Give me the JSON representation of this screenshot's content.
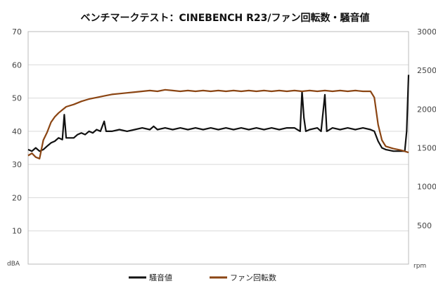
{
  "chart_data": {
    "type": "line",
    "title": "ベンチマークテスト：CINEBENCH R23/ファン回転数・騒音値",
    "y_left": {
      "unit": "dBA",
      "range": [
        0,
        70
      ],
      "ticks": [
        10,
        20,
        30,
        40,
        50,
        60,
        70
      ]
    },
    "y_right": {
      "unit": "rpm",
      "range": [
        0,
        3000
      ],
      "ticks": [
        500,
        1000,
        1500,
        2000,
        2500,
        3000
      ]
    },
    "grid": true,
    "legend_position": "bottom",
    "x_domain": [
      0,
      100
    ],
    "series": [
      {
        "name": "騒音値",
        "axis": "left",
        "color": "#111111",
        "points": [
          [
            0,
            34.5
          ],
          [
            1,
            34
          ],
          [
            2,
            35
          ],
          [
            3,
            34
          ],
          [
            4,
            34.5
          ],
          [
            5,
            35.5
          ],
          [
            6,
            36.5
          ],
          [
            7,
            37
          ],
          [
            8,
            38
          ],
          [
            9,
            37.5
          ],
          [
            9.5,
            45
          ],
          [
            10,
            38
          ],
          [
            12,
            38
          ],
          [
            13,
            39
          ],
          [
            14,
            39.5
          ],
          [
            15,
            39
          ],
          [
            16,
            40
          ],
          [
            17,
            39.5
          ],
          [
            18,
            40.5
          ],
          [
            19,
            40
          ],
          [
            20,
            43
          ],
          [
            20.5,
            40
          ],
          [
            22,
            40
          ],
          [
            24,
            40.5
          ],
          [
            26,
            40
          ],
          [
            28,
            40.5
          ],
          [
            30,
            41
          ],
          [
            32,
            40.5
          ],
          [
            33,
            41.5
          ],
          [
            34,
            40.5
          ],
          [
            36,
            41
          ],
          [
            38,
            40.5
          ],
          [
            40,
            41
          ],
          [
            42,
            40.5
          ],
          [
            44,
            41
          ],
          [
            46,
            40.5
          ],
          [
            48,
            41
          ],
          [
            50,
            40.5
          ],
          [
            52,
            41
          ],
          [
            54,
            40.5
          ],
          [
            56,
            41
          ],
          [
            58,
            40.5
          ],
          [
            60,
            41
          ],
          [
            62,
            40.5
          ],
          [
            64,
            41
          ],
          [
            66,
            40.5
          ],
          [
            68,
            41
          ],
          [
            70,
            41
          ],
          [
            71.5,
            40
          ],
          [
            72,
            52
          ],
          [
            72.5,
            44
          ],
          [
            73,
            40
          ],
          [
            74,
            40.5
          ],
          [
            76,
            41
          ],
          [
            77,
            40
          ],
          [
            78,
            51
          ],
          [
            78.5,
            40
          ],
          [
            80,
            41
          ],
          [
            82,
            40.5
          ],
          [
            84,
            41
          ],
          [
            86,
            40.5
          ],
          [
            88,
            41
          ],
          [
            90,
            40.5
          ],
          [
            91,
            40
          ],
          [
            92,
            37
          ],
          [
            93,
            35
          ],
          [
            94,
            34.5
          ],
          [
            96,
            34
          ],
          [
            98,
            34
          ],
          [
            99,
            34
          ],
          [
            99.5,
            40
          ],
          [
            100,
            57
          ]
        ]
      },
      {
        "name": "ファン回転数",
        "axis": "right",
        "color": "#8B4513",
        "points": [
          [
            0,
            1400
          ],
          [
            1,
            1430
          ],
          [
            2,
            1380
          ],
          [
            3,
            1360
          ],
          [
            4,
            1600
          ],
          [
            5,
            1700
          ],
          [
            6,
            1830
          ],
          [
            7,
            1900
          ],
          [
            8,
            1950
          ],
          [
            9,
            1990
          ],
          [
            10,
            2030
          ],
          [
            12,
            2060
          ],
          [
            14,
            2100
          ],
          [
            16,
            2130
          ],
          [
            18,
            2150
          ],
          [
            20,
            2170
          ],
          [
            22,
            2190
          ],
          [
            24,
            2200
          ],
          [
            26,
            2210
          ],
          [
            28,
            2220
          ],
          [
            30,
            2230
          ],
          [
            32,
            2240
          ],
          [
            34,
            2230
          ],
          [
            36,
            2250
          ],
          [
            38,
            2240
          ],
          [
            40,
            2230
          ],
          [
            42,
            2240
          ],
          [
            44,
            2230
          ],
          [
            46,
            2240
          ],
          [
            48,
            2230
          ],
          [
            50,
            2240
          ],
          [
            52,
            2230
          ],
          [
            54,
            2240
          ],
          [
            56,
            2230
          ],
          [
            58,
            2240
          ],
          [
            60,
            2230
          ],
          [
            62,
            2240
          ],
          [
            64,
            2230
          ],
          [
            66,
            2240
          ],
          [
            68,
            2230
          ],
          [
            70,
            2240
          ],
          [
            72,
            2230
          ],
          [
            74,
            2240
          ],
          [
            76,
            2230
          ],
          [
            78,
            2240
          ],
          [
            80,
            2230
          ],
          [
            82,
            2240
          ],
          [
            84,
            2230
          ],
          [
            86,
            2240
          ],
          [
            88,
            2230
          ],
          [
            90,
            2230
          ],
          [
            91,
            2150
          ],
          [
            92,
            1800
          ],
          [
            93,
            1600
          ],
          [
            94,
            1520
          ],
          [
            96,
            1490
          ],
          [
            98,
            1470
          ],
          [
            100,
            1440
          ]
        ]
      }
    ]
  }
}
